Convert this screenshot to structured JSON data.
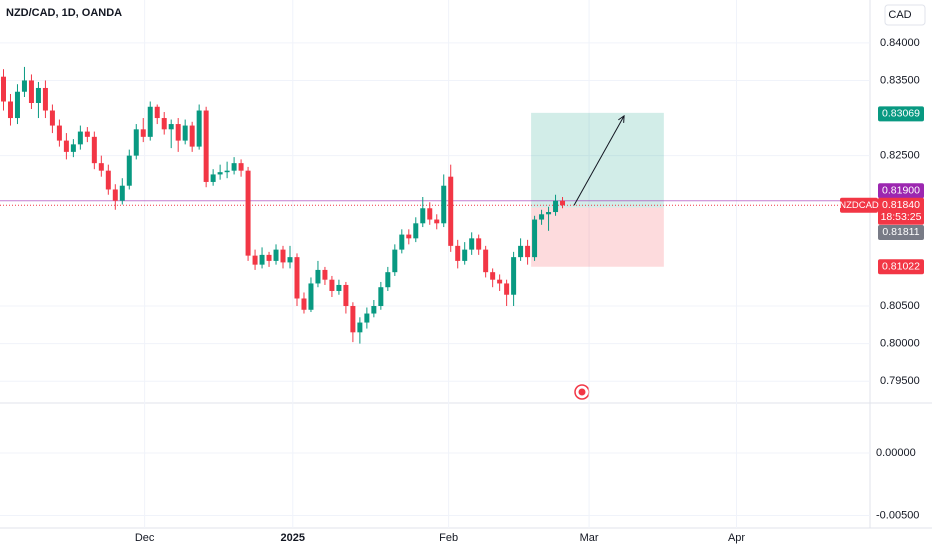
{
  "chart_data": {
    "type": "candlestick",
    "title": "NZD/CAD, 1D, OANDA",
    "currency": "CAD",
    "symbol": "NZDCAD",
    "countdown": "18:53:25",
    "up_color": "#089981",
    "down_color": "#f23645",
    "open": [
      0.8355,
      0.8322,
      0.83,
      0.8335,
      0.835,
      0.832,
      0.834,
      0.831,
      0.829,
      0.827,
      0.8255,
      0.8265,
      0.8282,
      0.8275,
      0.824,
      0.823,
      0.8205,
      0.819,
      0.821,
      0.825,
      0.8285,
      0.8275,
      0.8315,
      0.83,
      0.8285,
      0.8292,
      0.827,
      0.829,
      0.8262,
      0.831,
      0.8215,
      0.8225,
      0.8228,
      0.823,
      0.824,
      0.823,
      0.8117,
      0.8105,
      0.8118,
      0.811,
      0.8125,
      0.8108,
      0.8115,
      0.806,
      0.8045,
      0.808,
      0.8098,
      0.8085,
      0.807,
      0.8078,
      0.805,
      0.8015,
      0.8028,
      0.804,
      0.805,
      0.8075,
      0.8095,
      0.8125,
      0.8145,
      0.814,
      0.816,
      0.818,
      0.8165,
      0.816,
      0.8222,
      0.813,
      0.811,
      0.8125,
      0.814,
      0.8125,
      0.8095,
      0.8085,
      0.808,
      0.8065,
      0.8115,
      0.813,
      0.8115,
      0.8165,
      0.8172,
      0.8175,
      0.819
    ],
    "high": [
      0.8365,
      0.8332,
      0.8345,
      0.8368,
      0.8358,
      0.8348,
      0.835,
      0.8318,
      0.8298,
      0.828,
      0.8272,
      0.829,
      0.8288,
      0.8282,
      0.825,
      0.8238,
      0.8212,
      0.822,
      0.8258,
      0.8292,
      0.83,
      0.8322,
      0.8318,
      0.8308,
      0.8298,
      0.83,
      0.8298,
      0.8295,
      0.8318,
      0.8315,
      0.8232,
      0.8238,
      0.8242,
      0.8248,
      0.8245,
      0.8235,
      0.8125,
      0.8128,
      0.8122,
      0.8132,
      0.813,
      0.813,
      0.812,
      0.8068,
      0.8088,
      0.811,
      0.8102,
      0.809,
      0.8085,
      0.8082,
      0.8055,
      0.8035,
      0.8048,
      0.8058,
      0.8082,
      0.8102,
      0.8132,
      0.8152,
      0.8152,
      0.8168,
      0.8195,
      0.8188,
      0.8172,
      0.8225,
      0.8238,
      0.8138,
      0.8135,
      0.8148,
      0.8145,
      0.813,
      0.81,
      0.8092,
      0.8085,
      0.8122,
      0.814,
      0.8138,
      0.817,
      0.8178,
      0.8182,
      0.8198,
      0.8195
    ],
    "low": [
      0.831,
      0.829,
      0.8292,
      0.8328,
      0.8312,
      0.83,
      0.83,
      0.828,
      0.8262,
      0.8245,
      0.8248,
      0.8258,
      0.8268,
      0.8232,
      0.8222,
      0.8198,
      0.8178,
      0.8185,
      0.8205,
      0.8245,
      0.8268,
      0.827,
      0.8292,
      0.8278,
      0.826,
      0.8255,
      0.8265,
      0.8255,
      0.8258,
      0.8208,
      0.821,
      0.8218,
      0.822,
      0.8225,
      0.8222,
      0.811,
      0.8098,
      0.81,
      0.8102,
      0.8105,
      0.81,
      0.81,
      0.805,
      0.804,
      0.8042,
      0.8075,
      0.8078,
      0.8062,
      0.8065,
      0.804,
      0.8002,
      0.8,
      0.802,
      0.8035,
      0.8045,
      0.807,
      0.809,
      0.812,
      0.8132,
      0.8135,
      0.8155,
      0.8158,
      0.8152,
      0.8155,
      0.8122,
      0.81,
      0.8105,
      0.8118,
      0.8118,
      0.8088,
      0.8075,
      0.807,
      0.805,
      0.805,
      0.811,
      0.8105,
      0.811,
      0.8158,
      0.815,
      0.817,
      0.818
    ],
    "close": [
      0.8322,
      0.83,
      0.8335,
      0.835,
      0.832,
      0.834,
      0.831,
      0.829,
      0.827,
      0.8255,
      0.8265,
      0.8282,
      0.8275,
      0.824,
      0.823,
      0.8205,
      0.819,
      0.821,
      0.825,
      0.8285,
      0.8275,
      0.8315,
      0.83,
      0.8285,
      0.8292,
      0.827,
      0.829,
      0.8262,
      0.831,
      0.8215,
      0.8225,
      0.8228,
      0.823,
      0.824,
      0.823,
      0.8117,
      0.8105,
      0.8118,
      0.811,
      0.8125,
      0.8108,
      0.8115,
      0.806,
      0.8045,
      0.808,
      0.8098,
      0.8085,
      0.807,
      0.8078,
      0.805,
      0.8015,
      0.8028,
      0.804,
      0.805,
      0.8075,
      0.8095,
      0.8125,
      0.8145,
      0.814,
      0.816,
      0.818,
      0.8165,
      0.816,
      0.821,
      0.813,
      0.811,
      0.8125,
      0.814,
      0.8125,
      0.8095,
      0.8085,
      0.808,
      0.8065,
      0.8115,
      0.813,
      0.8115,
      0.8165,
      0.8172,
      0.8175,
      0.819,
      0.8184
    ],
    "xlim": [
      0,
      124.5
    ],
    "xticks": [
      {
        "value": 20.7,
        "label": "Dec"
      },
      {
        "value": 41.9,
        "label": "2025"
      },
      {
        "value": 64.2,
        "label": "Feb"
      },
      {
        "value": 84.3,
        "label": "Mar"
      },
      {
        "value": 105.4,
        "label": "Apr"
      }
    ],
    "ylim": [
      0.7921,
      0.8457
    ],
    "yticks": [
      {
        "value": 0.84,
        "label": "0.84000"
      },
      {
        "value": 0.835,
        "label": "0.83500"
      },
      {
        "value": 0.825,
        "label": "0.82500"
      },
      {
        "value": 0.805,
        "label": "0.80500"
      },
      {
        "value": 0.8,
        "label": "0.80000"
      },
      {
        "value": 0.795,
        "label": "0.79500"
      }
    ],
    "grid": true,
    "position": {
      "target": 0.83069,
      "target_label": "0.83069",
      "entry": 0.81811,
      "entry_label": "0.81811",
      "stop": 0.81022,
      "stop_label": "0.81022",
      "start": 76.0,
      "end": 95.0
    },
    "alert_line": {
      "value": 0.819,
      "label": "0.81900",
      "color": "#9c27b0"
    },
    "last_price": {
      "value": 0.8184,
      "label": "0.81840"
    },
    "indicator_pane": {
      "ylim": [
        -0.006,
        0.004
      ],
      "yticks": [
        {
          "value": 0,
          "label": "0.00000"
        },
        {
          "value": -0.005,
          "label": "-0.00500"
        }
      ]
    }
  }
}
